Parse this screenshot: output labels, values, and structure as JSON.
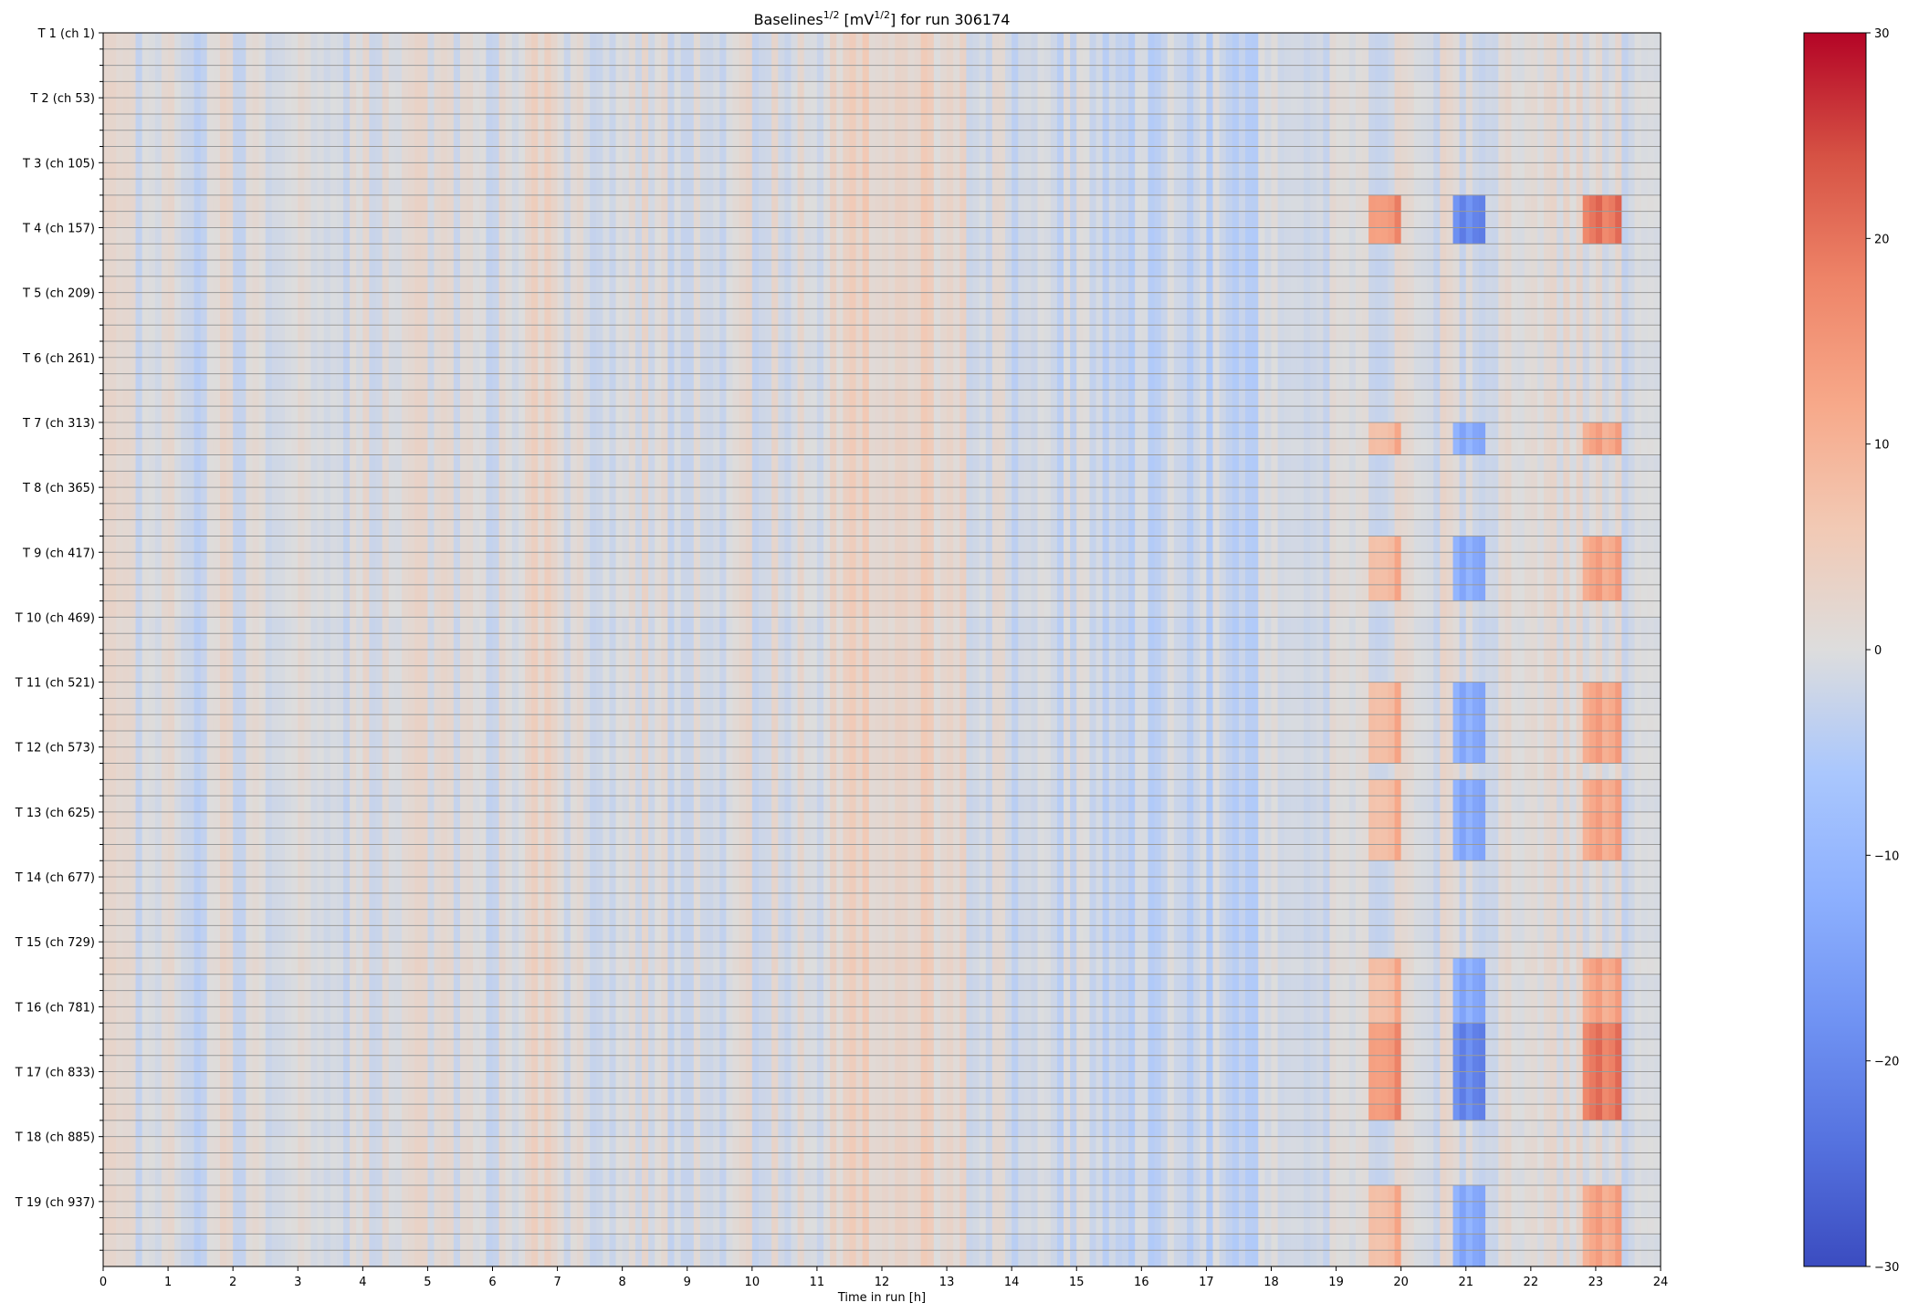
{
  "chart_data": {
    "type": "heatmap",
    "title": "Baselines",
    "title_sup1": "1/2",
    "title_mid": " [mV",
    "title_sup2": "1/2",
    "title_end": "] for run 306174",
    "xlabel": "Time in run [h]",
    "ylabel": "",
    "xlim": [
      0,
      24
    ],
    "x_ticks": [
      "0",
      "1",
      "2",
      "3",
      "4",
      "5",
      "6",
      "7",
      "8",
      "9",
      "10",
      "11",
      "12",
      "13",
      "14",
      "15",
      "16",
      "17",
      "18",
      "19",
      "20",
      "21",
      "22",
      "23",
      "24"
    ],
    "y_tick_labels": [
      "T 1 (ch 1)",
      "T 2 (ch 53)",
      "T 3 (ch 105)",
      "T 4 (ch 157)",
      "T 5 (ch 209)",
      "T 6 (ch 261)",
      "T 7 (ch 313)",
      "T 8 (ch 365)",
      "T 9 (ch 417)",
      "T 10 (ch 469)",
      "T 11 (ch 521)",
      "T 12 (ch 573)",
      "T 13 (ch 625)",
      "T 14 (ch 677)",
      "T 15 (ch 729)",
      "T 16 (ch 781)",
      "T 17 (ch 833)",
      "T 18 (ch 885)",
      "T 19 (ch 937)"
    ],
    "n_rows": 76,
    "n_cols": 240,
    "row_lines_every": 1,
    "colormap": "coolwarm",
    "colorbar": {
      "vmin": -30,
      "vmax": 30,
      "ticks": [
        "−30",
        "−20",
        "−10",
        "0",
        "10",
        "20",
        "30"
      ]
    },
    "colors": {
      "low": "#3b4cc0",
      "mid": "#dddddd",
      "high": "#b40426"
    }
  }
}
